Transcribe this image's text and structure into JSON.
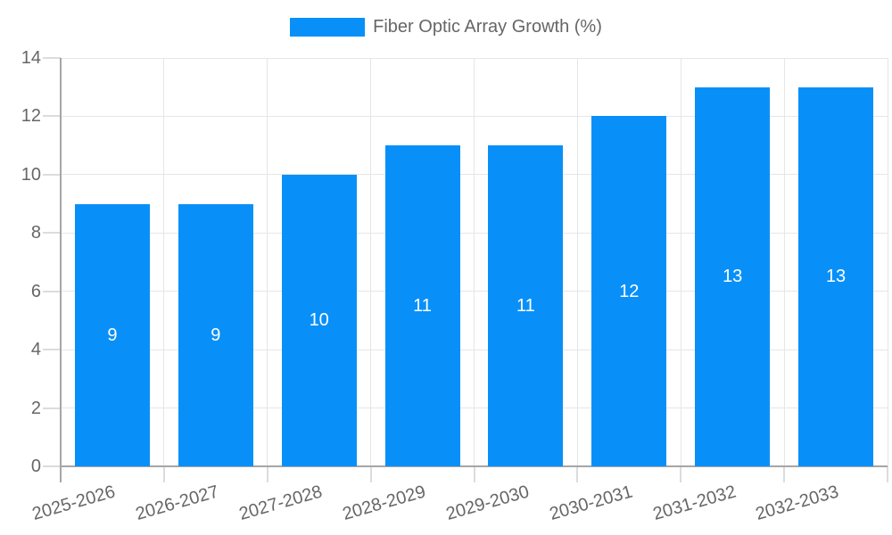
{
  "legend": {
    "label": "Fiber Optic Array Growth (%)",
    "position": "top"
  },
  "colors": {
    "bar": "#0990f8",
    "text": "#666666",
    "value_label": "#ffffff",
    "grid": "#e6e6e6",
    "axis": "#a6a6a6",
    "tick": "#dcdcdc",
    "background": "#ffffff"
  },
  "chart_data": {
    "type": "bar",
    "title": "Fiber Optic Array Growth (%)",
    "categories": [
      "2025-2026",
      "2026-2027",
      "2027-2028",
      "2028-2029",
      "2029-2030",
      "2030-2031",
      "2031-2032",
      "2032-2033"
    ],
    "values": [
      9,
      9,
      10,
      11,
      11,
      12,
      13,
      13
    ],
    "xlabel": "",
    "ylabel": "",
    "ylim": [
      0,
      14
    ],
    "yticks": [
      0,
      2,
      4,
      6,
      8,
      10,
      12,
      14
    ],
    "grid": true,
    "legend_position": "top",
    "value_labels": "center",
    "x_label_rotation_deg": -16
  }
}
